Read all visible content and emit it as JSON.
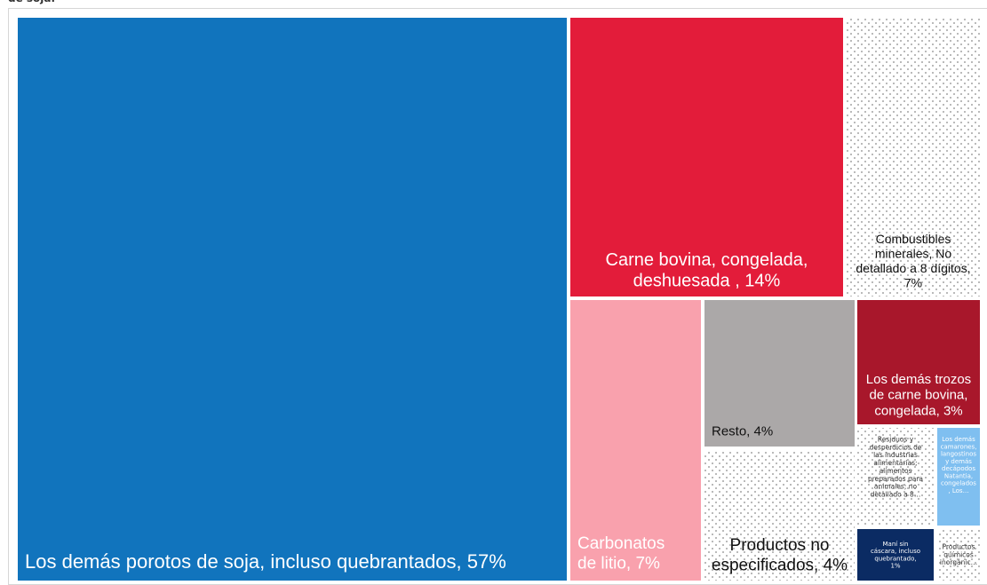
{
  "chart_data": {
    "type": "treemap",
    "title": "",
    "items": [
      {
        "label": "Los demás porotos de soja, incluso quebrantados, 57%",
        "value": 57,
        "color": "#1174bd",
        "text_color": "#ffffff"
      },
      {
        "label": "Carne bovina, congelada, deshuesada , 14%",
        "value": 14,
        "color": "#e31c3a",
        "text_color": "#ffffff"
      },
      {
        "label": "Combustibles minerales, No detallado a 8 dígitos, 7%",
        "value": 7,
        "color": "dotted",
        "text_color": "#111111"
      },
      {
        "label": "Carbonatos de litio, 7%",
        "value": 7,
        "color": "#f9a1ad",
        "text_color": "#ffffff"
      },
      {
        "label": "Resto, 4%",
        "value": 4,
        "color": "#aba8a8",
        "text_color": "#111111"
      },
      {
        "label": "Productos no especificados, 4%",
        "value": 4,
        "color": "dotted",
        "text_color": "#111111"
      },
      {
        "label": "Los demás trozos de carne bovina, congelada, 3%",
        "value": 3,
        "color": "#a8172b",
        "text_color": "#ffffff"
      },
      {
        "label": "Residuos y desperdicios de las industrias alimentarias; alimentos preparados para animales; no detallado a 8…",
        "value": 1.5,
        "color": "dotted",
        "text_color": "#333333"
      },
      {
        "label": "Los demás camarones, langostinos y demás decápodos Natantia, congelados , Los…",
        "value": 1.2,
        "color": "#7fbff0",
        "text_color": "#ffffff"
      },
      {
        "label": "Maní sin cáscara, incluso quebrantado, 1%",
        "value": 1,
        "color": "#0b2b63",
        "text_color": "#ffffff"
      },
      {
        "label": "Productos químicos inorgánic…",
        "value": 0.8,
        "color": "dotted",
        "text_color": "#333333"
      }
    ]
  }
}
